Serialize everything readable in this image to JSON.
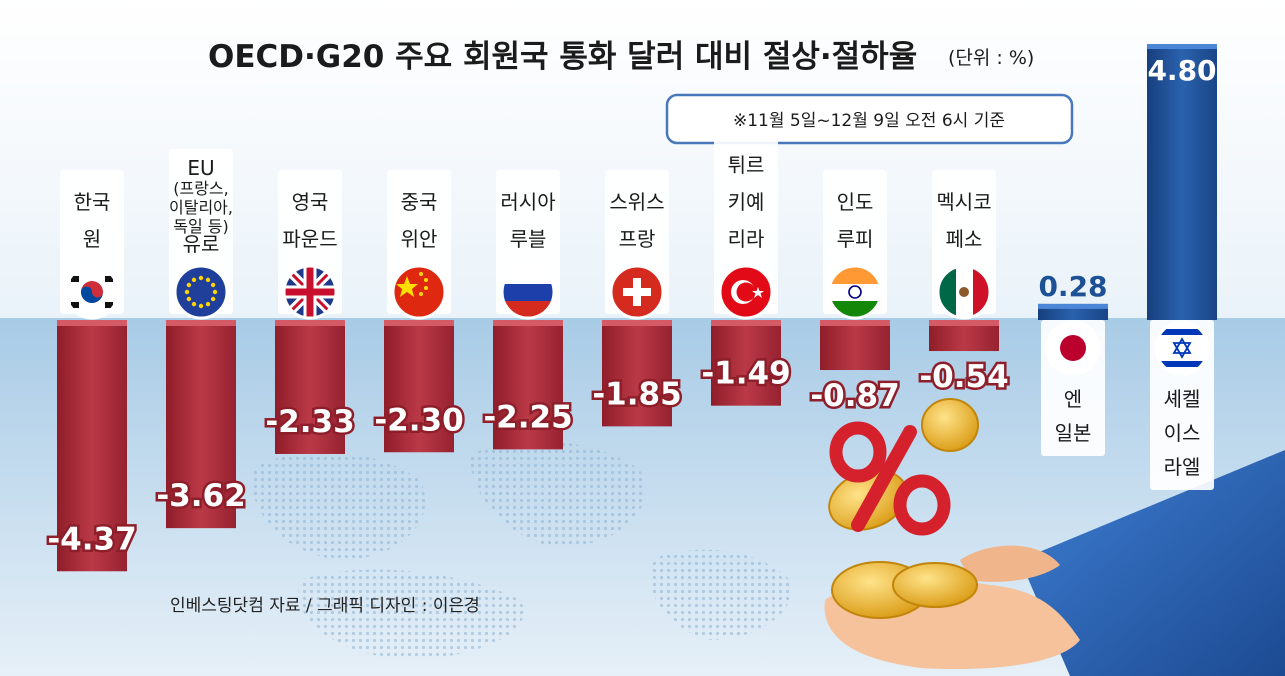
{
  "title": "OECD·G20 주요 회원국 통화 달러 대비 절상·절하율",
  "unit_label": "(단위 : %)",
  "note": "※11월 5일~12월 9일 오전 6시 기준",
  "source": "인베스팅닷컴 자료 / 그래픽 디자인 : 이은경",
  "colors": {
    "negative_bar": "#b0323f",
    "positive_bar": "#1d5196",
    "sea": "#8fbadc",
    "sky": "#f3f8fc",
    "sleeve": "#2d64b8",
    "hand": "#f7c9a3",
    "coin": "#f1bd32",
    "percent_sign": "#d5212c"
  },
  "chart_data": {
    "type": "bar",
    "title": "OECD·G20 주요 회원국 통화 달러 대비 절상·절하율",
    "unit": "%",
    "ylim": [
      -4.8,
      5.2
    ],
    "categories": [
      "한국 원",
      "EU (프랑스, 이탈리아, 독일 등) 유로",
      "영국 파운드",
      "중국 위안",
      "러시아 루블",
      "스위스 프랑",
      "튀르키예 리라",
      "인도 루피",
      "멕시코 페소",
      "일본 엔",
      "이스라엘 셰켈"
    ],
    "values": [
      -4.37,
      -3.62,
      -2.33,
      -2.3,
      -2.25,
      -1.85,
      -1.49,
      -0.87,
      -0.54,
      0.28,
      4.8
    ],
    "value_labels": [
      "-4.37",
      "-3.62",
      "-2.33",
      "-2.30",
      "-2.25",
      "-1.85",
      "-1.49",
      "-0.87",
      "-0.54",
      "0.28",
      "4.80"
    ],
    "label_lines": [
      [
        "한국",
        "원"
      ],
      [
        "EU",
        "(프랑스,",
        "이탈리아,",
        "독일 등)",
        "유로"
      ],
      [
        "영국",
        "파운드"
      ],
      [
        "중국",
        "위안"
      ],
      [
        "러시아",
        "루블"
      ],
      [
        "스위스",
        "프랑"
      ],
      [
        "튀르",
        "키예",
        "리라"
      ],
      [
        "인도",
        "루피"
      ],
      [
        "멕시코",
        "페소"
      ],
      [
        "엔",
        "일본"
      ],
      [
        "셰켈",
        "이스",
        "라엘"
      ]
    ],
    "flag_icons": [
      "korea-flag-icon",
      "eu-flag-icon",
      "uk-flag-icon",
      "china-flag-icon",
      "russia-flag-icon",
      "switzerland-flag-icon",
      "turkey-flag-icon",
      "india-flag-icon",
      "mexico-flag-icon",
      "japan-flag-icon",
      "israel-flag-icon"
    ],
    "grid": false,
    "legend": "none"
  }
}
